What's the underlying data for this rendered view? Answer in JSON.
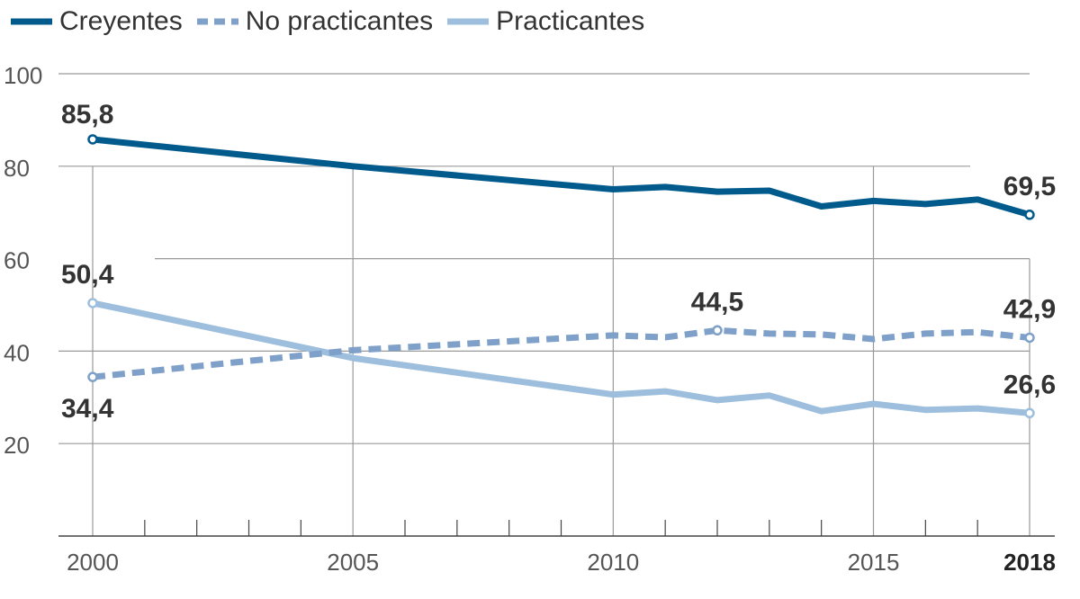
{
  "chart_data": {
    "type": "line",
    "title": "",
    "xlabel": "",
    "ylabel": "",
    "xlim": [
      2000,
      2018
    ],
    "ylim": [
      0,
      100
    ],
    "yticks": [
      20,
      40,
      60,
      80,
      100
    ],
    "ytick_labels": [
      "20",
      "40",
      "60",
      "80",
      "100"
    ],
    "xticks": [
      2000,
      2005,
      2010,
      2015,
      2018
    ],
    "xtick_labels": [
      "2000",
      "2005",
      "2010",
      "2015",
      "2018"
    ],
    "minor_xticks": [
      2001,
      2002,
      2003,
      2004,
      2006,
      2007,
      2008,
      2009,
      2011,
      2012,
      2013,
      2014,
      2016,
      2017
    ],
    "vertical_gridlines": [
      2000,
      2005,
      2010,
      2015,
      2018
    ],
    "legend_position": "top-left",
    "series": [
      {
        "name": "Creyentes",
        "color": "#005a8c",
        "style": "solid",
        "x": [
          2000,
          2005,
          2010,
          2011,
          2012,
          2013,
          2014,
          2015,
          2016,
          2017,
          2018
        ],
        "values": [
          85.8,
          80.0,
          75.0,
          75.5,
          74.5,
          74.7,
          71.3,
          72.5,
          71.8,
          72.8,
          69.5
        ]
      },
      {
        "name": "No practicantes",
        "color": "#7fa0c8",
        "style": "dashed",
        "x": [
          2000,
          2005,
          2010,
          2011,
          2012,
          2013,
          2014,
          2015,
          2016,
          2017,
          2018
        ],
        "values": [
          34.4,
          40.2,
          43.4,
          43.0,
          44.5,
          43.8,
          43.6,
          42.6,
          43.8,
          44.1,
          42.9
        ]
      },
      {
        "name": "Practicantes",
        "color": "#9dbfdd",
        "style": "solid",
        "x": [
          2000,
          2005,
          2010,
          2011,
          2012,
          2013,
          2014,
          2015,
          2016,
          2017,
          2018
        ],
        "values": [
          50.4,
          38.5,
          30.6,
          31.3,
          29.4,
          30.4,
          27.0,
          28.6,
          27.3,
          27.6,
          26.6
        ]
      }
    ],
    "annotations": [
      {
        "series": 0,
        "x": 2000,
        "y": 85.8,
        "text": "85,8"
      },
      {
        "series": 0,
        "x": 2018,
        "y": 69.5,
        "text": "69,5"
      },
      {
        "series": 1,
        "x": 2000,
        "y": 34.4,
        "text": "34,4"
      },
      {
        "series": 1,
        "x": 2012,
        "y": 44.5,
        "text": "44,5"
      },
      {
        "series": 1,
        "x": 2018,
        "y": 42.9,
        "text": "42,9"
      },
      {
        "series": 2,
        "x": 2000,
        "y": 50.4,
        "text": "50,4"
      },
      {
        "series": 2,
        "x": 2018,
        "y": 26.6,
        "text": "26,6"
      }
    ],
    "highlighted_xtick": "2018"
  }
}
